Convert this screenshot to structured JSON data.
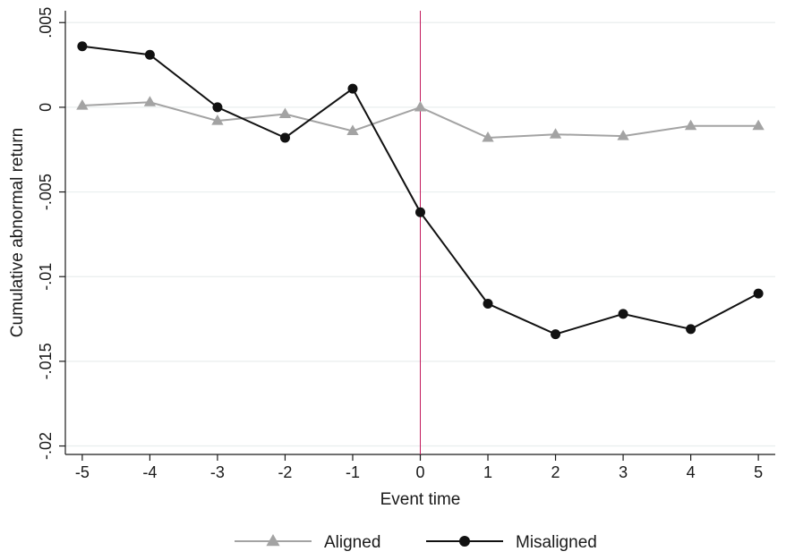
{
  "chart_data": {
    "type": "line",
    "title": "",
    "xlabel": "Event time",
    "ylabel": "Cumulative abnormal return",
    "xlim": [
      -5.25,
      5.25
    ],
    "ylim": [
      -0.0205,
      0.0057
    ],
    "x_ticks": [
      -5,
      -4,
      -3,
      -2,
      -1,
      0,
      1,
      2,
      3,
      4,
      5
    ],
    "x_tick_labels": [
      "-5",
      "-4",
      "-3",
      "-2",
      "-1",
      "0",
      "1",
      "2",
      "3",
      "4",
      "5"
    ],
    "y_ticks": [
      0.005,
      0,
      -0.005,
      -0.01,
      -0.015,
      -0.02
    ],
    "y_tick_labels": [
      ".005",
      "0",
      "-.005",
      "-.01",
      "-.015",
      "-.02"
    ],
    "grid": true,
    "legend_position": "bottom",
    "reference_line": {
      "x": 0,
      "color": "#c2185b"
    },
    "x": [
      -5,
      -4,
      -3,
      -2,
      -1,
      0,
      1,
      2,
      3,
      4,
      5
    ],
    "series": [
      {
        "name": "Aligned",
        "marker": "triangle",
        "color": "#a3a3a3",
        "values": [
          0.0001,
          0.0003,
          -0.0008,
          -0.0004,
          -0.0014,
          0.0,
          -0.0018,
          -0.0016,
          -0.0017,
          -0.0011,
          -0.0011
        ]
      },
      {
        "name": "Misaligned",
        "marker": "circle",
        "color": "#111111",
        "values": [
          0.0036,
          0.0031,
          0.0,
          -0.0018,
          0.0011,
          -0.0062,
          -0.0116,
          -0.0134,
          -0.0122,
          -0.0131,
          -0.011
        ]
      }
    ]
  }
}
